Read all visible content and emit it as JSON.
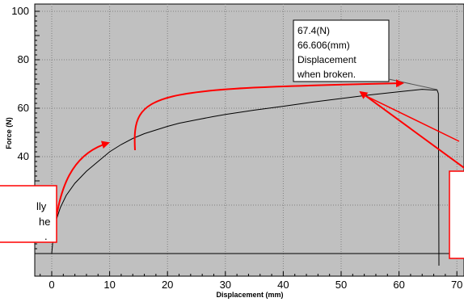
{
  "chart_data": {
    "type": "line",
    "xlabel": "Displacement (mm)",
    "ylabel": "Force (N)",
    "xlim": [
      -3,
      70
    ],
    "ylim": [
      0,
      102
    ],
    "xticks": [
      0,
      10,
      20,
      30,
      40,
      50,
      60,
      70
    ],
    "yticks": [
      40,
      60,
      80,
      100
    ],
    "grid": true,
    "background": "#c0c0c0",
    "series": [
      {
        "color": "#000000",
        "points": [
          [
            0,
            0
          ],
          [
            0.3,
            8
          ],
          [
            0.8,
            14
          ],
          [
            1.5,
            19
          ],
          [
            2.5,
            24
          ],
          [
            4,
            29
          ],
          [
            6,
            34
          ],
          [
            8,
            38
          ],
          [
            10,
            42
          ],
          [
            12,
            45
          ],
          [
            14,
            47.5
          ],
          [
            16,
            49.5
          ],
          [
            18,
            51
          ],
          [
            20,
            52.5
          ],
          [
            22,
            53.8
          ],
          [
            25,
            55.2
          ],
          [
            28,
            56.6
          ],
          [
            30,
            57.4
          ],
          [
            35,
            59.2
          ],
          [
            40,
            60.8
          ],
          [
            45,
            62.5
          ],
          [
            50,
            64
          ],
          [
            55,
            65.5
          ],
          [
            60,
            66.8
          ],
          [
            64,
            67.8
          ],
          [
            66.6,
            67.4
          ],
          [
            66.8,
            66
          ],
          [
            66.9,
            -5
          ]
        ]
      }
    ],
    "annotations": {
      "break_note": [
        "67.4(N)",
        "66.606(mm)",
        "Displacement",
        "when broken."
      ],
      "left_fragments": [
        "lly",
        "he",
        "."
      ]
    }
  },
  "colors": {
    "plot_background": "#c0c0c0",
    "grid": "#7f7f7f",
    "curve": "#000000",
    "arrow": "#ff0000",
    "box_border": "#ff0000"
  }
}
